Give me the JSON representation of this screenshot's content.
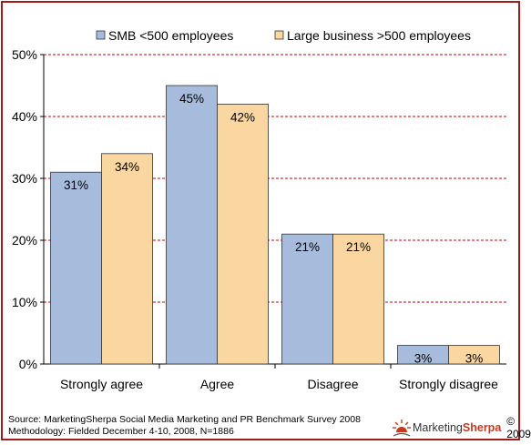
{
  "chart_data": {
    "type": "bar",
    "categories": [
      "Strongly agree",
      "Agree",
      "Disagree",
      "Strongly disagree"
    ],
    "series": [
      {
        "name": "SMB <500 employees",
        "values": [
          31,
          45,
          21,
          3
        ],
        "labels": [
          "31%",
          "45%",
          "21%",
          "3%"
        ],
        "color": "#a7bcdc"
      },
      {
        "name": "Large business >500 employees",
        "values": [
          34,
          42,
          21,
          3
        ],
        "labels": [
          "34%",
          "42%",
          "21%",
          "3%"
        ],
        "color": "#fad6a0"
      }
    ],
    "ylim": [
      0,
      50
    ],
    "yticks": [
      "0%",
      "10%",
      "20%",
      "30%",
      "40%",
      "50%"
    ],
    "ytick_values": [
      0,
      10,
      20,
      30,
      40,
      50
    ],
    "grid": true,
    "grid_color": "#cc0000",
    "legend_position": "top"
  },
  "footer": {
    "source": "Source: MarketingSherpa Social Media Marketing and PR Benchmark Survey 2008",
    "methodology": "Methodology: Fielded December 4-10, 2008, N=1886"
  },
  "brand": {
    "name_part1": "Marketing",
    "name_part2": "Sherpa",
    "copyright": "© 2009",
    "accent_color": "#c8381e",
    "icon": "sun-icon"
  }
}
